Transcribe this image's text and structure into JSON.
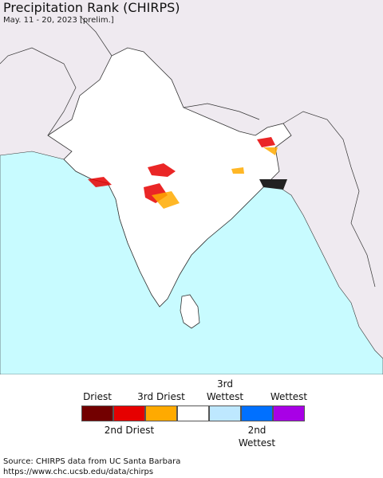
{
  "header": {
    "title": "Precipitation Rank (CHIRPS)",
    "subtitle": "May. 11 - 20, 2023 [prelim.]"
  },
  "legend": {
    "items": [
      {
        "label": "Driest",
        "color": "#730000",
        "side": "top"
      },
      {
        "label": "2nd Driest",
        "color": "#e60000",
        "side": "bottom"
      },
      {
        "label": "3rd Driest",
        "color": "#ffaa00",
        "side": "top"
      },
      {
        "color": "#ffffff"
      },
      {
        "label": "3rd Wettest",
        "color": "#bee8ff",
        "side": "top"
      },
      {
        "label": "2nd Wettest",
        "color": "#0070ff",
        "side": "bottom"
      },
      {
        "label": "Wettest",
        "color": "#a800e6",
        "side": "top"
      }
    ]
  },
  "footer": {
    "source": "Source: CHIRPS data from UC Santa Barbara",
    "url": "https://www.chc.ucsb.edu/data/chirps"
  }
}
